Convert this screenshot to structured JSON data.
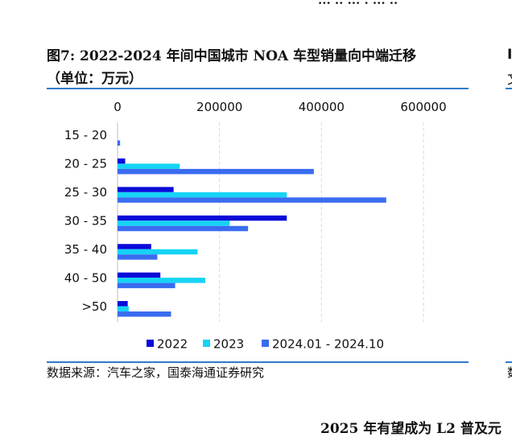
{
  "header_fragment": "... .. ... . ... ..",
  "figure": {
    "label": "图7:",
    "title_line1": "2022-2024 年间中国城市 NOA 车型销量向中端迁移",
    "title_line2": "（单位：万元）"
  },
  "source_note": "数据来源：汽车之家，国泰海通证券研究",
  "right_fragments": [
    "I",
    "文",
    "数"
  ],
  "footer_fragment": "2025 年有望成为 L2 普及元",
  "colors": {
    "2022": "#0b0bd9",
    "2023": "#16d3f5",
    "2024.01 - 2024.10": "#3a6cf0",
    "rule": "#2e7bc8",
    "grid": "#d9d9d9"
  },
  "chart_data": {
    "type": "bar",
    "orientation": "horizontal",
    "categories": [
      "15 - 20",
      "20 - 25",
      "25 - 30",
      "30 - 35",
      "35 - 40",
      "40 - 50",
      ">50"
    ],
    "series": [
      {
        "name": "2022",
        "values": [
          0,
          15000,
          110000,
          332000,
          66000,
          84000,
          20000
        ]
      },
      {
        "name": "2023",
        "values": [
          0,
          122000,
          332000,
          220000,
          157000,
          172000,
          22000
        ]
      },
      {
        "name": "2024.01 - 2024.10",
        "values": [
          5000,
          385000,
          527000,
          256000,
          78000,
          113000,
          105000
        ]
      }
    ],
    "x_ticks": [
      "0",
      "200000",
      "400000",
      "600000"
    ],
    "xlim": [
      0,
      600000
    ],
    "axis_position": "top",
    "grid": true,
    "legend_position": "bottom",
    "title": "",
    "xlabel": "",
    "ylabel": ""
  }
}
